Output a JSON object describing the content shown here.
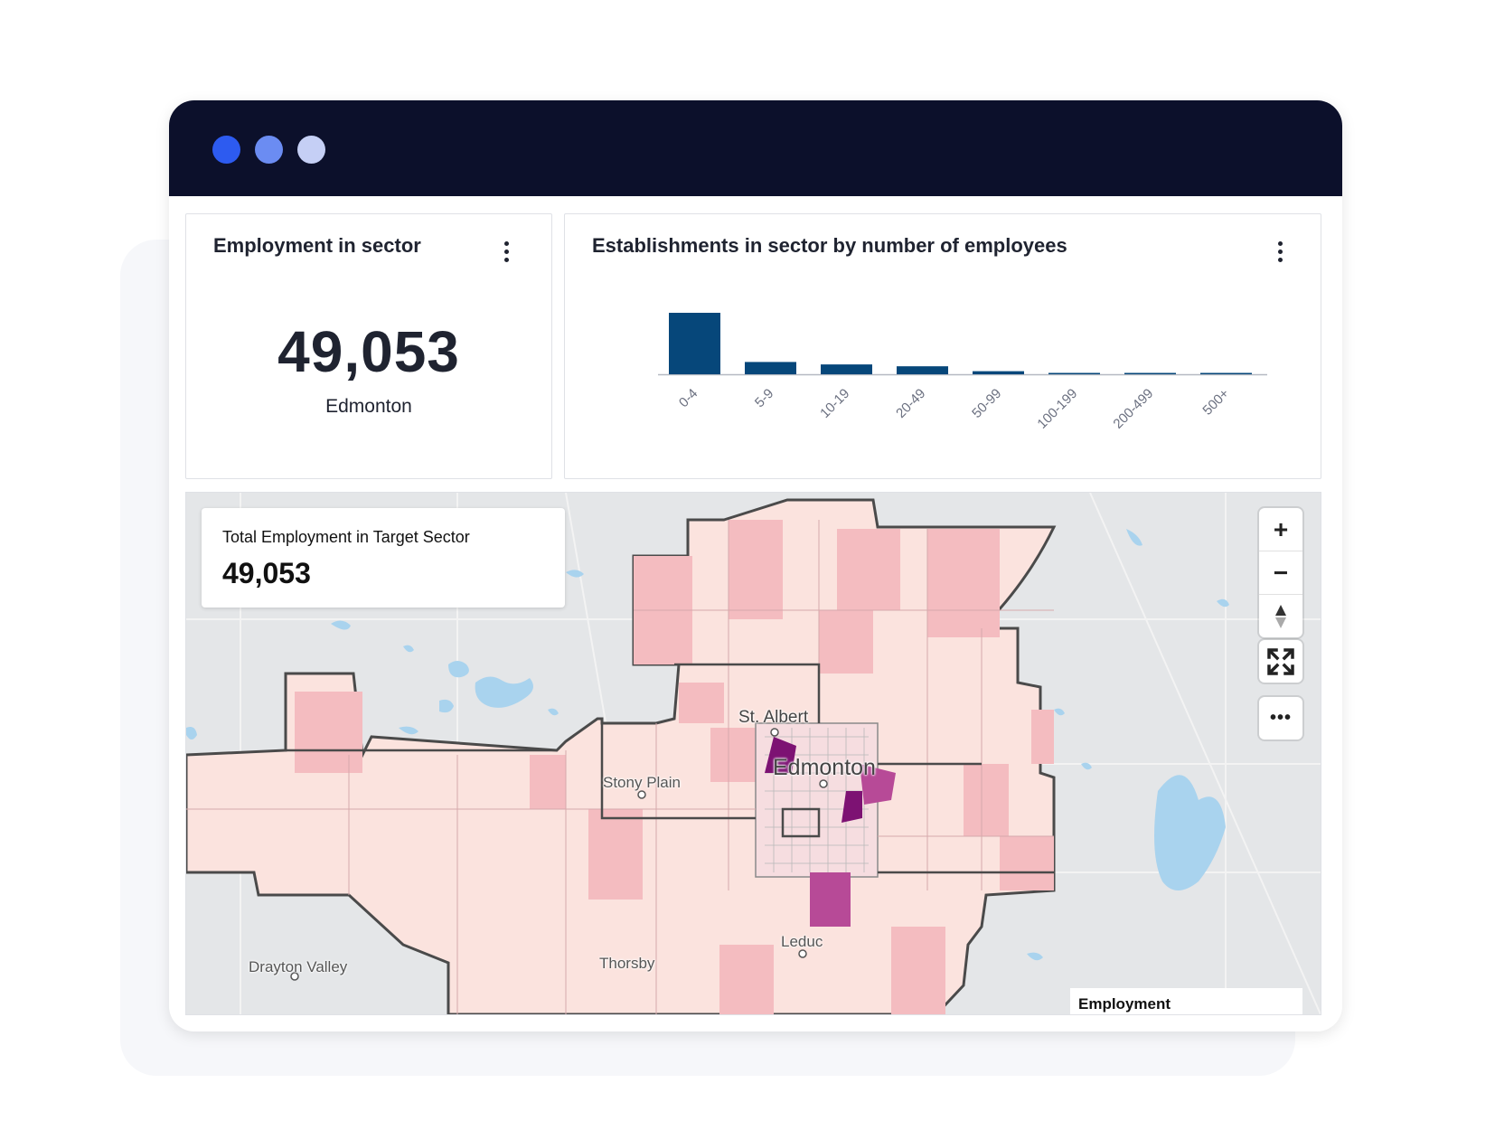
{
  "window": {
    "dots": [
      {
        "color": "#2d5bf0"
      },
      {
        "color": "#6b8cf2"
      },
      {
        "color": "#c5cff5"
      }
    ]
  },
  "employment_card": {
    "title": "Employment in sector",
    "value": "49,053",
    "subtitle": "Edmonton"
  },
  "establishments_card": {
    "title": "Establishments in sector by number of employees"
  },
  "chart_data": {
    "type": "bar",
    "categories": [
      "0-4",
      "5-9",
      "10-19",
      "20-49",
      "50-99",
      "100-199",
      "200-499",
      "500+"
    ],
    "values": [
      100,
      20,
      16,
      13,
      5,
      2,
      1,
      0.3
    ],
    "title": "Establishments in sector by number of employees",
    "xlabel": "",
    "ylabel": "",
    "color": "#06477a",
    "grid": false
  },
  "map": {
    "info_title": "Total Employment in Target Sector",
    "info_value": "49,053",
    "legend_title": "Employment",
    "labels": {
      "st_albert": "St. Albert",
      "edmonton": "Edmonton",
      "stony_plain": "Stony Plain",
      "leduc": "Leduc",
      "drayton_valley": "Drayton Valley",
      "thorsby": "Thorsby"
    },
    "controls": {
      "zoom_in": "+",
      "zoom_out": "−",
      "more": "•••"
    },
    "colors": {
      "base": "#e4e6e8",
      "water": "#a9d3ee",
      "choropleth_light": "#fbe3de",
      "choropleth_mid": "#f4bcc0",
      "choropleth_high": "#b74a97",
      "choropleth_max": "#7d1273",
      "boundary": "#4a4a4a"
    }
  }
}
